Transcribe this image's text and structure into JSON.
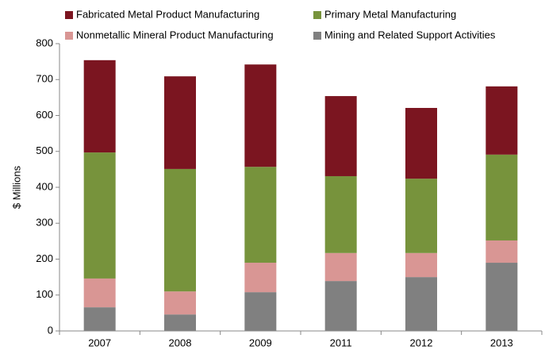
{
  "chart_data": {
    "type": "stacked_bar",
    "y_label": "$ Millions",
    "categories": [
      "2007",
      "2008",
      "2009",
      "2011",
      "2012",
      "2013"
    ],
    "series": [
      {
        "name": "Mining and Related Support Activities",
        "color": "#808080",
        "values": [
          66,
          46,
          108,
          139,
          150,
          190
        ]
      },
      {
        "name": "Nonmetallic Mineral Product Manufacturing",
        "color": "#d99694",
        "values": [
          80,
          64,
          82,
          78,
          67,
          62
        ]
      },
      {
        "name": "Primary Metal Manufacturing",
        "color": "#77933c",
        "values": [
          351,
          341,
          267,
          214,
          207,
          239
        ]
      },
      {
        "name": "Fabricated Metal Product Manufacturing",
        "color": "#7b1520",
        "values": [
          257,
          258,
          285,
          223,
          197,
          190
        ]
      }
    ],
    "ylim": [
      0,
      800
    ],
    "yticks": [
      0,
      100,
      200,
      300,
      400,
      500,
      600,
      700,
      800
    ],
    "grid": false
  }
}
